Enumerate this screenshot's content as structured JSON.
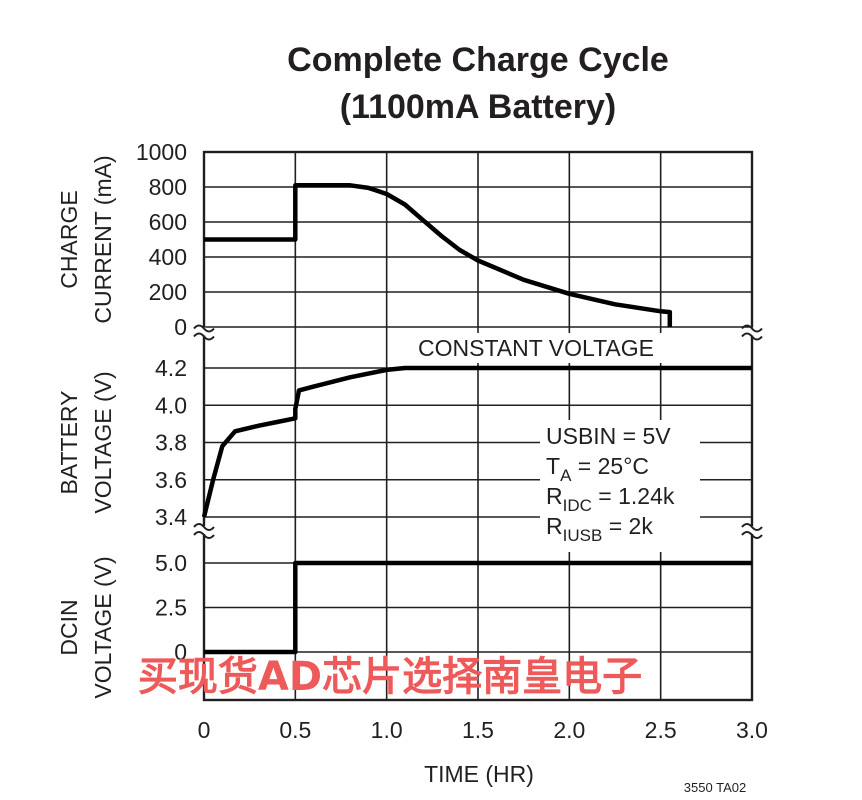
{
  "chart_data": {
    "type": "line",
    "title": "Complete Charge Cycle",
    "subtitle": "(1100mA Battery)",
    "xlabel": "TIME (HR)",
    "xlim": [
      0,
      3.0
    ],
    "x_ticks": [
      "0",
      "0.5",
      "1.0",
      "1.5",
      "2.0",
      "2.5",
      "3.0"
    ],
    "grid": true,
    "panels": [
      {
        "ylabel_lines": [
          "CHARGE",
          "CURRENT (mA)"
        ],
        "ylim": [
          0,
          1000
        ],
        "y_ticks": [
          "1000",
          "800",
          "600",
          "400",
          "200",
          "0"
        ],
        "series": [
          {
            "x": [
              0,
              0.5,
              0.5,
              0.8,
              0.9,
              1.0,
              1.1,
              1.2,
              1.3,
              1.4,
              1.5,
              1.75,
              2.0,
              2.25,
              2.5,
              2.55,
              2.55
            ],
            "y": [
              500,
              500,
              810,
              810,
              795,
              760,
              700,
              610,
              520,
              440,
              380,
              270,
              190,
              130,
              90,
              85,
              0
            ]
          }
        ]
      },
      {
        "ylabel_lines": [
          "BATTERY",
          "VOLTAGE (V)"
        ],
        "ylim": [
          3.4,
          4.2
        ],
        "y_ticks": [
          "4.2",
          "4.0",
          "3.8",
          "3.6",
          "3.4"
        ],
        "series": [
          {
            "x": [
              0,
              0.05,
              0.1,
              0.17,
              0.3,
              0.4,
              0.5,
              0.5,
              0.52,
              0.6,
              0.8,
              1.0,
              1.1,
              1.2,
              3.0
            ],
            "y": [
              3.4,
              3.6,
              3.78,
              3.86,
              3.89,
              3.91,
              3.93,
              3.98,
              4.08,
              4.1,
              4.15,
              4.19,
              4.2,
              4.2,
              4.2
            ]
          }
        ],
        "annotation": "CONSTANT VOLTAGE"
      },
      {
        "ylabel_lines": [
          "DCIN",
          "VOLTAGE (V)"
        ],
        "ylim": [
          0,
          5.0
        ],
        "y_ticks": [
          "5.0",
          "2.5",
          "0"
        ],
        "series": [
          {
            "x": [
              0,
              0.5,
              0.5,
              3.0
            ],
            "y": [
              0,
              0,
              5.0,
              5.0
            ]
          }
        ]
      }
    ],
    "conditions": [
      {
        "main": "USBIN = 5V",
        "sub": "",
        "rest": ""
      },
      {
        "main": "T",
        "sub": "A",
        "rest": " = 25°C"
      },
      {
        "main": "R",
        "sub": "IDC",
        "rest": " = 1.24k"
      },
      {
        "main": "R",
        "sub": "IUSB",
        "rest": " = 2k"
      }
    ]
  },
  "figure_code": "3550 TA02",
  "watermark": "买现货AD芯片选择南皇电子"
}
